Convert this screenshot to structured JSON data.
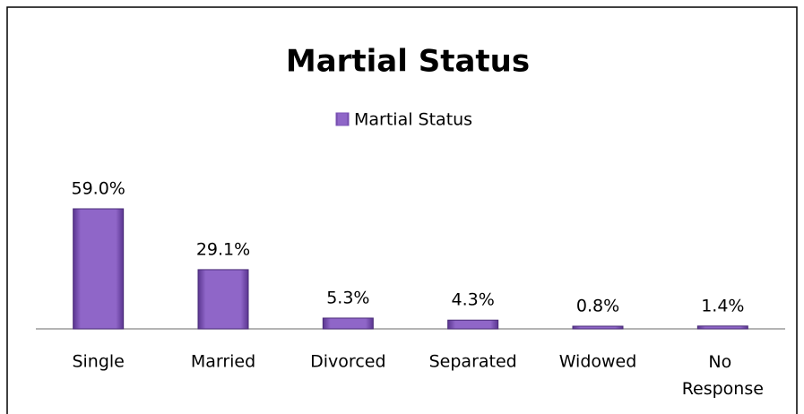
{
  "chart_data": {
    "type": "bar",
    "title": "Martial Status",
    "categories": [
      "Single",
      "Married",
      "Divorced",
      "Separated",
      "Widowed",
      "No Response"
    ],
    "series": [
      {
        "name": "Martial Status",
        "color": "#7e55b8",
        "values": [
          59.0,
          29.1,
          5.3,
          4.3,
          0.8,
          1.4
        ],
        "value_labels": [
          "59.0%",
          "29.1%",
          "5.3%",
          "4.3%",
          "0.8%",
          "1.4%"
        ]
      }
    ],
    "legend": "top"
  }
}
